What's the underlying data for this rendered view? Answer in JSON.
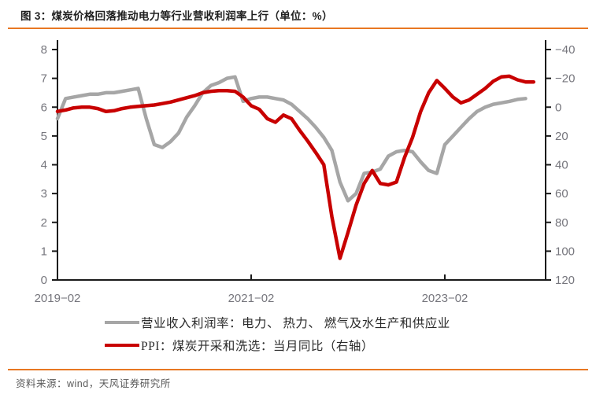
{
  "title": "图 3：煤炭价格回落推动电力等行业营收利润率上行（单位：%）",
  "source": "资料来源：wind，天风证券研究所",
  "colors": {
    "accent_orange": "#E87722",
    "gray_line": "#A6A6A6",
    "red_line": "#C80000",
    "axis_line": "#1a1a1a",
    "axis_text": "#76767D",
    "title_text": "#1f1f1f",
    "source_text": "#595959"
  },
  "chart_data": {
    "type": "line",
    "title": "煤炭价格回落推动电力等行业营收利润率上行",
    "unit": "%",
    "x_tick_labels": [
      "2019-02",
      "2021-02",
      "2023-02"
    ],
    "x_tick_indices": [
      0,
      24,
      48
    ],
    "categories": [
      "2019-02",
      "2019-03",
      "2019-04",
      "2019-05",
      "2019-06",
      "2019-07",
      "2019-08",
      "2019-09",
      "2019-10",
      "2019-11",
      "2019-12",
      "2020-01",
      "2020-02",
      "2020-03",
      "2020-04",
      "2020-05",
      "2020-06",
      "2020-07",
      "2020-08",
      "2020-09",
      "2020-10",
      "2020-11",
      "2020-12",
      "2021-01",
      "2021-02",
      "2021-03",
      "2021-04",
      "2021-05",
      "2021-06",
      "2021-07",
      "2021-08",
      "2021-09",
      "2021-10",
      "2021-11",
      "2021-12",
      "2022-01",
      "2022-02",
      "2022-03",
      "2022-04",
      "2022-05",
      "2022-06",
      "2022-07",
      "2022-08",
      "2022-09",
      "2022-10",
      "2022-11",
      "2022-12",
      "2023-01",
      "2023-02",
      "2023-03",
      "2023-04",
      "2023-05",
      "2023-06",
      "2023-07",
      "2023-08",
      "2023-09",
      "2023-10",
      "2023-11",
      "2023-12",
      "2024-01"
    ],
    "left_axis": {
      "min": 0,
      "max": 8,
      "ticks": [
        8,
        7,
        6,
        5,
        4,
        3,
        2,
        1,
        0
      ]
    },
    "right_axis": {
      "min": -40,
      "max": 120,
      "inverted": true,
      "ticks": [
        -40,
        -20,
        0,
        20,
        40,
        60,
        80,
        100,
        120
      ]
    },
    "grid": false,
    "legend_position": "bottom",
    "series": [
      {
        "name": "营业收入利润率：电力、 热力、 燃气及水生产和供应业",
        "axis": "left",
        "color": "#A6A6A6",
        "values": [
          5.6,
          6.3,
          6.35,
          6.4,
          6.45,
          6.45,
          6.5,
          6.5,
          6.55,
          6.6,
          6.65,
          5.6,
          4.7,
          4.6,
          4.8,
          5.1,
          5.65,
          6.05,
          6.5,
          6.75,
          6.85,
          7.0,
          7.05,
          6.2,
          6.3,
          6.35,
          6.35,
          6.3,
          6.25,
          6.1,
          5.85,
          5.6,
          5.3,
          4.95,
          4.5,
          3.4,
          2.75,
          3.0,
          3.7,
          3.75,
          3.85,
          4.3,
          4.45,
          4.5,
          4.45,
          4.1,
          3.8,
          3.7,
          4.7,
          5.0,
          5.3,
          5.6,
          5.85,
          6.0,
          6.1,
          6.15,
          6.2,
          6.27,
          6.3,
          null
        ]
      },
      {
        "name": "PPI：煤炭开采和洗选：当月同比（右轴）",
        "axis": "right",
        "color": "#C80000",
        "values": [
          3,
          2,
          0.5,
          0,
          0,
          1,
          3,
          2.5,
          1,
          0,
          -0.5,
          -1,
          -1.5,
          -2.5,
          -3.5,
          -5,
          -6.5,
          -8,
          -10,
          -11,
          -11.5,
          -11.5,
          -11,
          -7,
          -1,
          1.5,
          8,
          10.5,
          5.5,
          8,
          16,
          23.5,
          31.5,
          40,
          76,
          105,
          87,
          68,
          53,
          44,
          53,
          54,
          52,
          35,
          21,
          3,
          -10,
          -18.5,
          -13,
          -7,
          -3,
          -5,
          -9,
          -13,
          -18,
          -21,
          -21.5,
          -19,
          -17.5,
          -17.5
        ]
      }
    ]
  },
  "legend": {
    "items": [
      {
        "label": "营业收入利润率：电力、 热力、 燃气及水生产和供应业",
        "color": "#A6A6A6"
      },
      {
        "label": "PPI：煤炭开采和洗选：当月同比（右轴）",
        "color": "#C80000"
      }
    ]
  }
}
